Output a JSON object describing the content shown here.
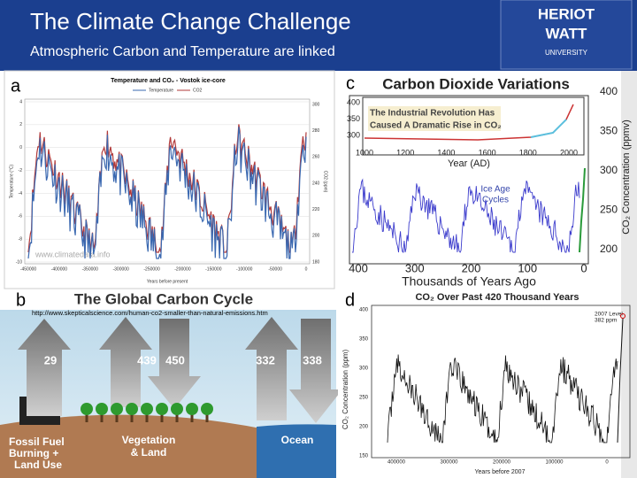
{
  "header": {
    "title": "The Climate Change Challenge",
    "subtitle": "Atmospheric Carbon and Temperature are linked",
    "logo": [
      "HERIOT",
      "WATT",
      "UNIVERSITY"
    ]
  },
  "panels": {
    "a": {
      "letter": "a",
      "title": "Temperature and CO₂ - Vostok ice-core",
      "legend": [
        "Temperature",
        "CO2"
      ],
      "watermark": "www.climatedata.info",
      "y_label": "Temperature (°C)",
      "y2_label": "CO2 (ppm)",
      "x_label": "Years before present",
      "yticks": [
        "4",
        "2",
        "0",
        "-2",
        "-4",
        "-6",
        "-8",
        "-10"
      ],
      "y2ticks": [
        "300",
        "280",
        "260",
        "240",
        "220",
        "200",
        "180"
      ],
      "xticks": [
        "-450000",
        "-400000",
        "-350000",
        "-300000",
        "-250000",
        "-200000",
        "-150000",
        "-100000",
        "-50000",
        "0"
      ]
    },
    "b": {
      "letter": "b",
      "title": "The Global Carbon Cycle",
      "url": "http://www.skepticalscience.com/human-co2-smaller-than-natural-emissions.htm",
      "fluxes": [
        "29",
        "439",
        "450",
        "332",
        "338"
      ],
      "labels": [
        "Fossil Fuel",
        "Burning +",
        "Land Use",
        "Vegetation",
        "& Land",
        "Ocean"
      ]
    },
    "c": {
      "letter": "c",
      "title": "Carbon Dioxide Variations",
      "inset_text": [
        "The Industrial Revolution Has",
        "Caused A Dramatic Rise in CO₂"
      ],
      "inset_yticks": [
        "400",
        "350",
        "300"
      ],
      "inset_xticks": [
        "1000",
        "1200",
        "1400",
        "1600",
        "1800",
        "2000"
      ],
      "inset_x_label": "Year (AD)",
      "annotation": [
        "Ice Age",
        "Cycles"
      ],
      "yticks": [
        "400",
        "350",
        "300",
        "250",
        "200"
      ],
      "xticks": [
        "400",
        "300",
        "200",
        "100",
        "0"
      ],
      "x_label": "Thousands of Years Ago",
      "y_label": "CO₂ Concentration (ppmv)"
    },
    "d": {
      "letter": "d",
      "title": "CO₂ Over Past 420 Thousand Years",
      "annotation": [
        "2007 Level",
        "382 ppm"
      ],
      "yticks": [
        "400",
        "350",
        "300",
        "250",
        "200",
        "150"
      ],
      "xticks": [
        "400000",
        "300000",
        "200000",
        "100000",
        "0"
      ],
      "x_label": "Years before 2007",
      "y_label": "CO₂ Concentration (ppm)"
    }
  }
}
